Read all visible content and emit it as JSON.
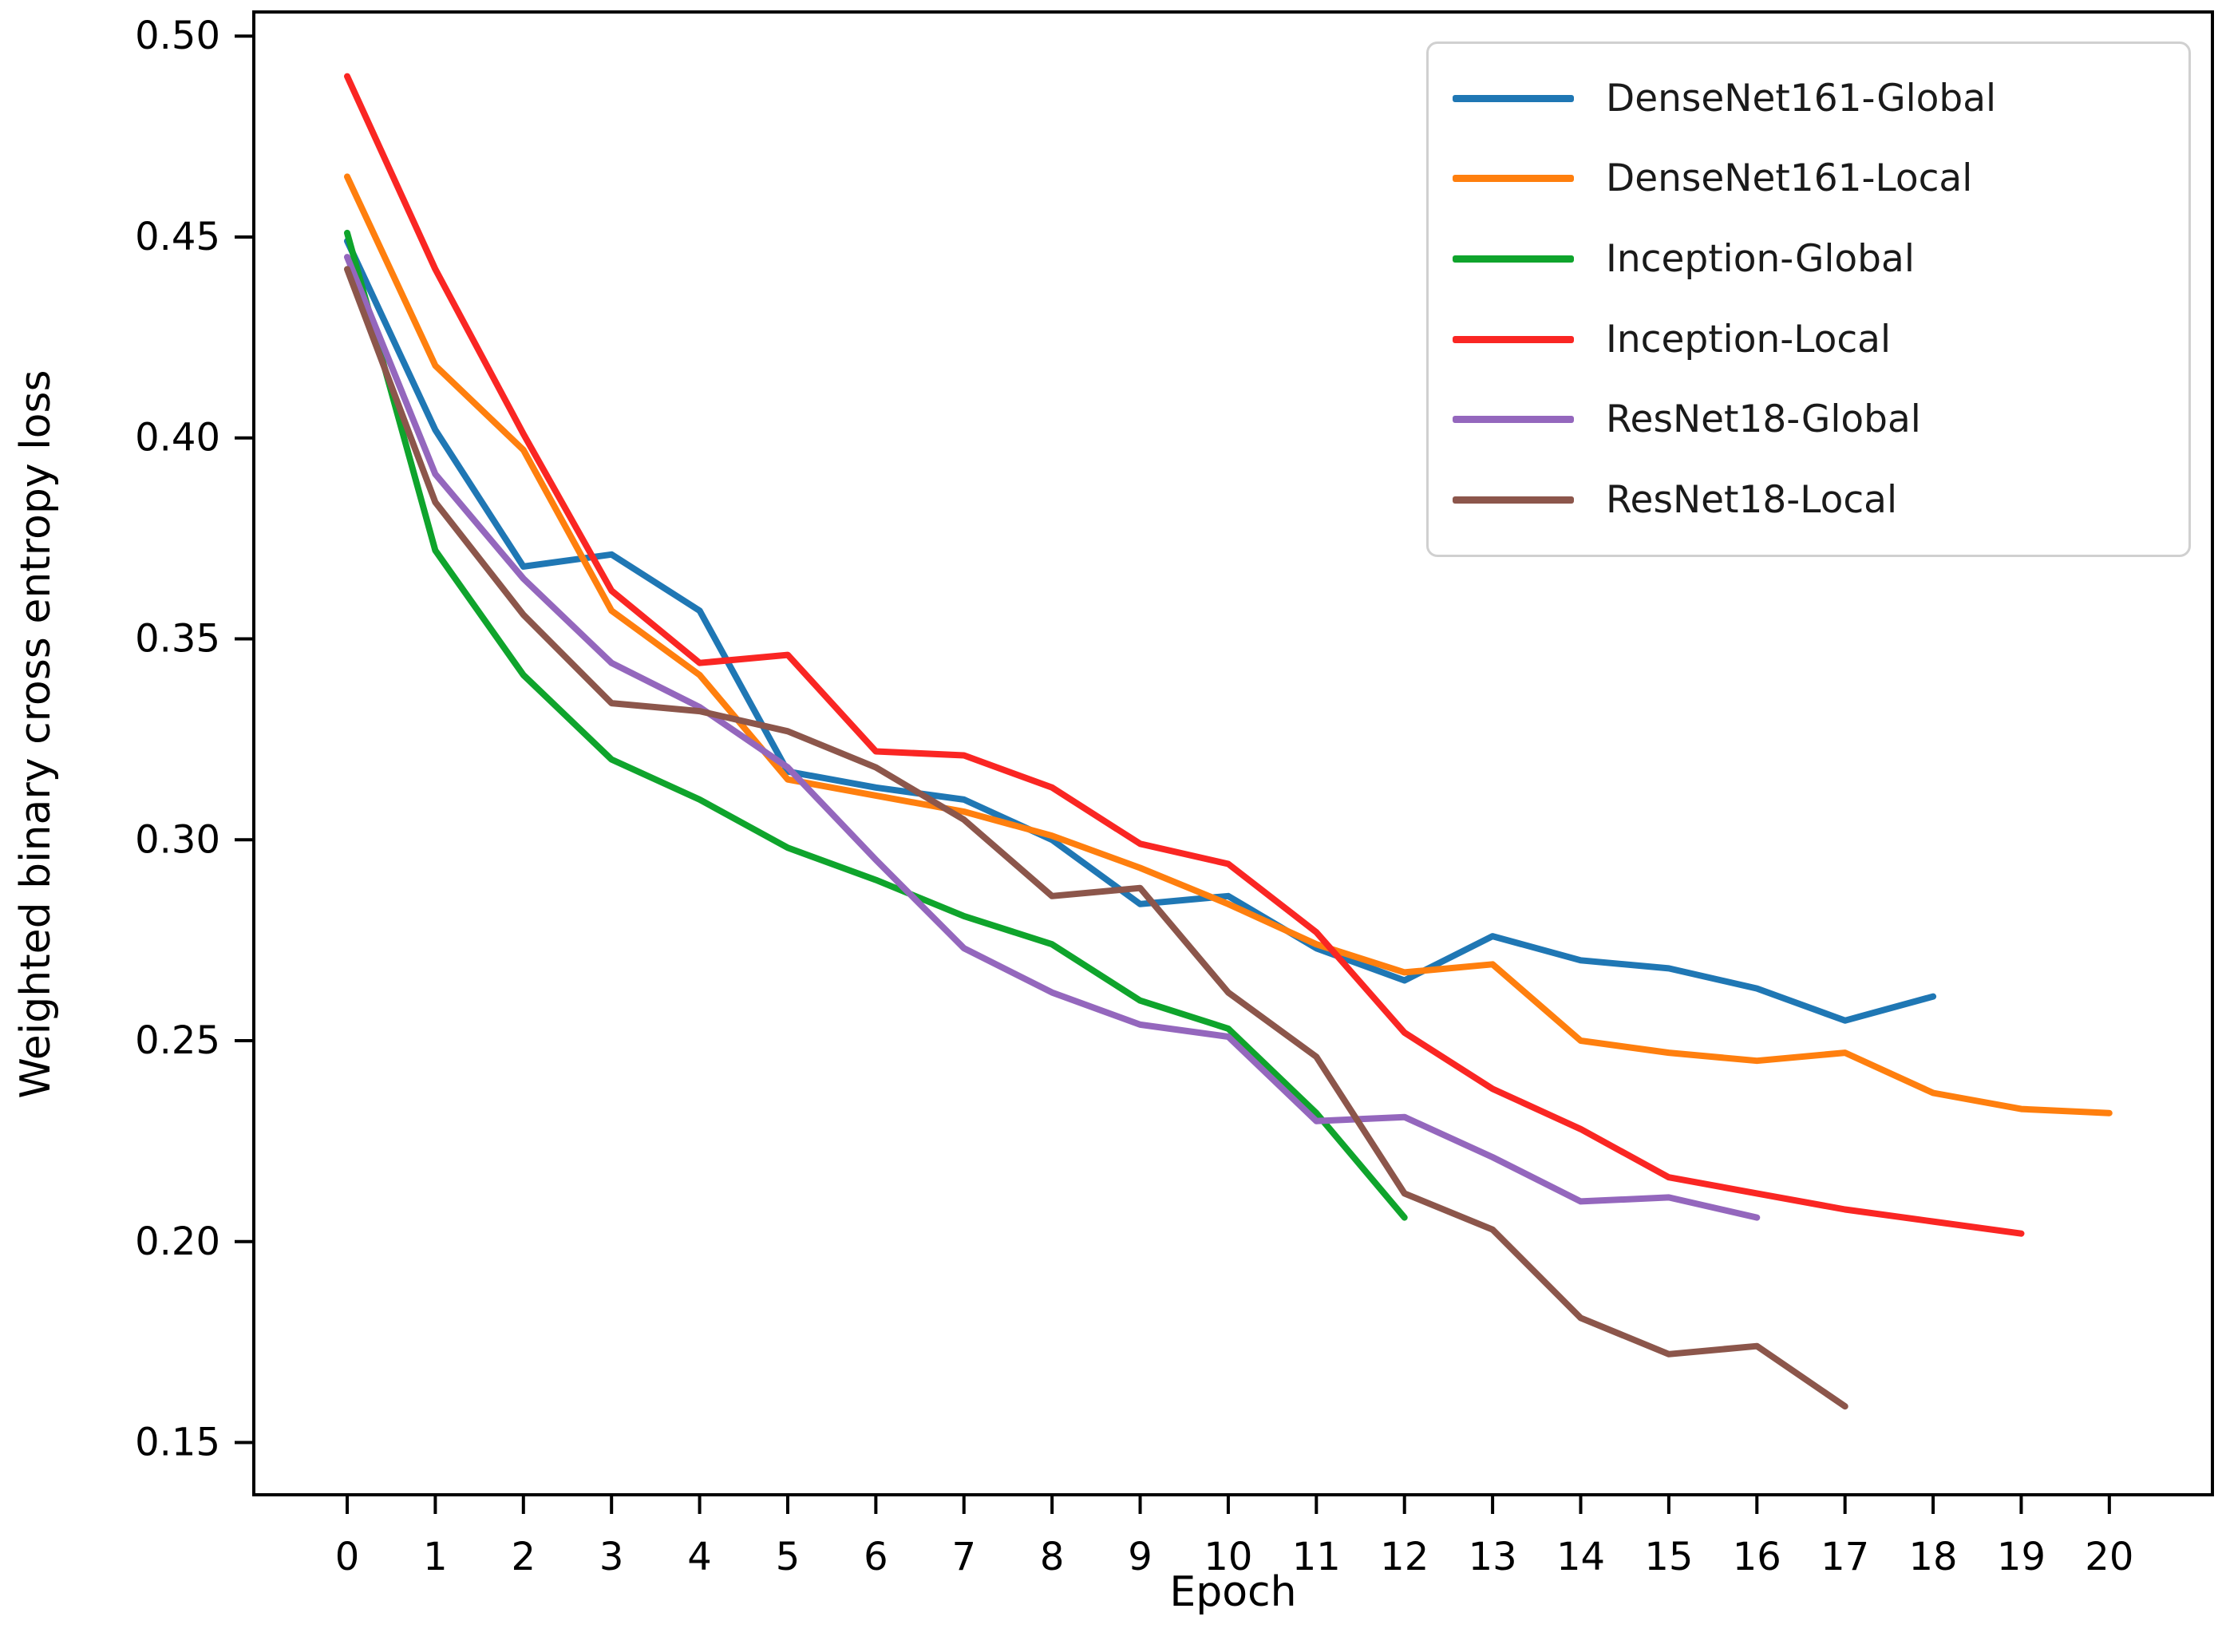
{
  "chart_data": {
    "type": "line",
    "title": "",
    "xlabel": "Epoch",
    "ylabel": "Weighted binary cross entropy loss",
    "grid": false,
    "legend_position": "upper right",
    "xlim": [
      -1.06,
      21.17
    ],
    "ylim": [
      0.137,
      0.506
    ],
    "xticks": [
      0,
      1,
      2,
      3,
      4,
      5,
      6,
      7,
      8,
      9,
      10,
      11,
      12,
      13,
      14,
      15,
      16,
      17,
      18,
      19,
      20
    ],
    "yticks": [
      0.15,
      0.2,
      0.25,
      0.3,
      0.35,
      0.4,
      0.45,
      0.5
    ],
    "x": [
      0,
      1,
      2,
      3,
      4,
      5,
      6,
      7,
      8,
      9,
      10,
      11,
      12,
      13,
      14,
      15,
      16,
      17,
      18,
      19,
      20
    ],
    "series": [
      {
        "name": "DenseNet161-Global",
        "color": "#1f77b4",
        "values": [
          0.449,
          0.402,
          0.368,
          0.371,
          0.357,
          0.317,
          0.313,
          0.31,
          0.3,
          0.284,
          0.286,
          0.273,
          0.265,
          0.276,
          0.27,
          0.268,
          0.263,
          0.255,
          0.261
        ]
      },
      {
        "name": "DenseNet161-Local",
        "color": "#ff7f0e",
        "values": [
          0.465,
          0.418,
          0.397,
          0.357,
          0.341,
          0.315,
          0.311,
          0.307,
          0.301,
          0.293,
          0.284,
          0.274,
          0.267,
          0.269,
          0.25,
          0.247,
          0.245,
          0.247,
          0.237,
          0.233,
          0.232
        ]
      },
      {
        "name": "Inception-Global",
        "color": "#0fa42c",
        "values": [
          0.451,
          0.372,
          0.341,
          0.32,
          0.31,
          0.298,
          0.29,
          0.281,
          0.274,
          0.26,
          0.253,
          0.232,
          0.206
        ]
      },
      {
        "name": "Inception-Local",
        "color": "#fa2623",
        "values": [
          0.49,
          0.442,
          0.401,
          0.362,
          0.344,
          0.346,
          0.322,
          0.321,
          0.313,
          0.299,
          0.294,
          0.277,
          0.252,
          0.238,
          0.228,
          0.216,
          0.212,
          0.208,
          0.205,
          0.202
        ]
      },
      {
        "name": "ResNet18-Global",
        "color": "#9467bd",
        "values": [
          0.445,
          0.391,
          0.365,
          0.344,
          0.333,
          0.318,
          0.295,
          0.273,
          0.262,
          0.254,
          0.251,
          0.23,
          0.231,
          0.221,
          0.21,
          0.211,
          0.206
        ]
      },
      {
        "name": "ResNet18-Local",
        "color": "#8c564b",
        "values": [
          0.442,
          0.384,
          0.356,
          0.334,
          0.332,
          0.327,
          0.318,
          0.305,
          0.286,
          0.288,
          0.262,
          0.246,
          0.212,
          0.203,
          0.181,
          0.172,
          0.174,
          0.159
        ]
      }
    ]
  }
}
